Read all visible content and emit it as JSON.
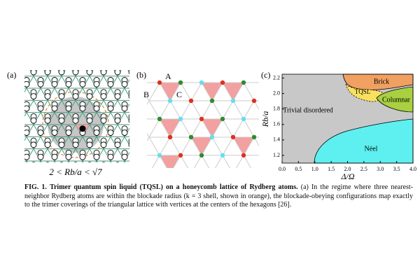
{
  "panel_a": {
    "label": "(a)",
    "formula": "2 < Rb/a < √7"
  },
  "panel_b": {
    "label": "(b)",
    "sites": [
      "A",
      "B",
      "C"
    ]
  },
  "chart_data": {
    "type": "area",
    "label": "(c)",
    "xlabel": "Δ/Ω",
    "ylabel": "Rb/a",
    "xlim": [
      0,
      4
    ],
    "ylim": [
      1.1,
      2.25
    ],
    "xticks": [
      {
        "value": 0,
        "label": "0.0"
      },
      0.5,
      {
        "value": 1,
        "label": "1.0"
      },
      1.5,
      {
        "value": 2,
        "label": "2.0"
      },
      2.5,
      {
        "value": 3,
        "label": "3.0"
      },
      3.5,
      {
        "value": 4,
        "label": "4.0"
      }
    ],
    "yticks": [
      1.2,
      1.4,
      1.6,
      1.8,
      {
        "value": 2,
        "label": "2.0"
      },
      2.2
    ],
    "regions": [
      {
        "name": "Trivial disordered",
        "color": "#c8c8c8"
      },
      {
        "name": "Néel",
        "color": "#5ef0f0"
      },
      {
        "name": "Brick",
        "color": "#f0a060"
      },
      {
        "name": "TQSL",
        "color": "#f8e060"
      },
      {
        "name": "Columnar",
        "color": "#a8d040"
      }
    ]
  },
  "caption": {
    "fig_label": "FIG. 1.",
    "title": "Trimer quantum spin liquid (TQSL) on a honeycomb lattice of Rydberg atoms.",
    "text": "(a) In the regime where three nearest-neighbor Rydberg atoms are within the blockade radius (k = 3 shell, shown in orange), the blockade-obeying configurations map exactly to the trimer coverings of the triangular lattice with vertices at the centers of the hexagons [26]."
  }
}
